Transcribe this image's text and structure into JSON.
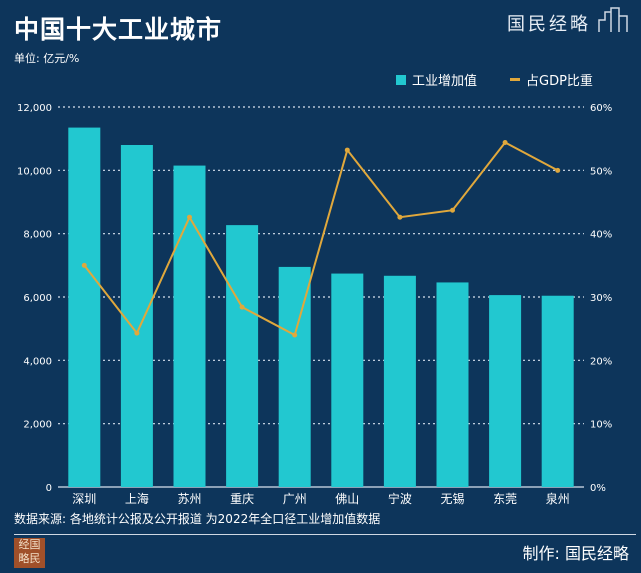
{
  "header": {
    "title": "中国十大工业城市",
    "unit": "单位: 亿元/%",
    "brand": "国民经略"
  },
  "chart_data": {
    "type": "bar",
    "title": "中国十大工业城市",
    "categories": [
      "深圳",
      "上海",
      "苏州",
      "重庆",
      "广州",
      "佛山",
      "宁波",
      "无锡",
      "东莞",
      "泉州"
    ],
    "series": [
      {
        "name": "工业增加值",
        "type": "bar",
        "axis": "left",
        "color": "#22c8d0",
        "values": [
          11350,
          10800,
          10150,
          8270,
          6950,
          6740,
          6670,
          6460,
          6060,
          6040
        ]
      },
      {
        "name": "占GDP比重",
        "type": "line",
        "axis": "right",
        "color": "#e0a83c",
        "values": [
          35.0,
          24.3,
          42.6,
          28.4,
          24.0,
          53.2,
          42.6,
          43.7,
          54.4,
          50.0
        ]
      }
    ],
    "ylim": [
      0,
      12000
    ],
    "y2lim": [
      0,
      60
    ],
    "yticks": [
      "0",
      "2,000",
      "4,000",
      "6,000",
      "8,000",
      "10,000",
      "12,000"
    ],
    "y2ticks": [
      "0%",
      "10%",
      "20%",
      "30%",
      "40%",
      "50%",
      "60%"
    ],
    "grid": true,
    "legend": "top-right"
  },
  "footer": {
    "source": "数据来源: 各地统计公报及公开报道 为2022年全口径工业增加值数据",
    "maker": "制作: 国民经略",
    "seal": [
      "经",
      "国",
      "略",
      "民"
    ]
  }
}
